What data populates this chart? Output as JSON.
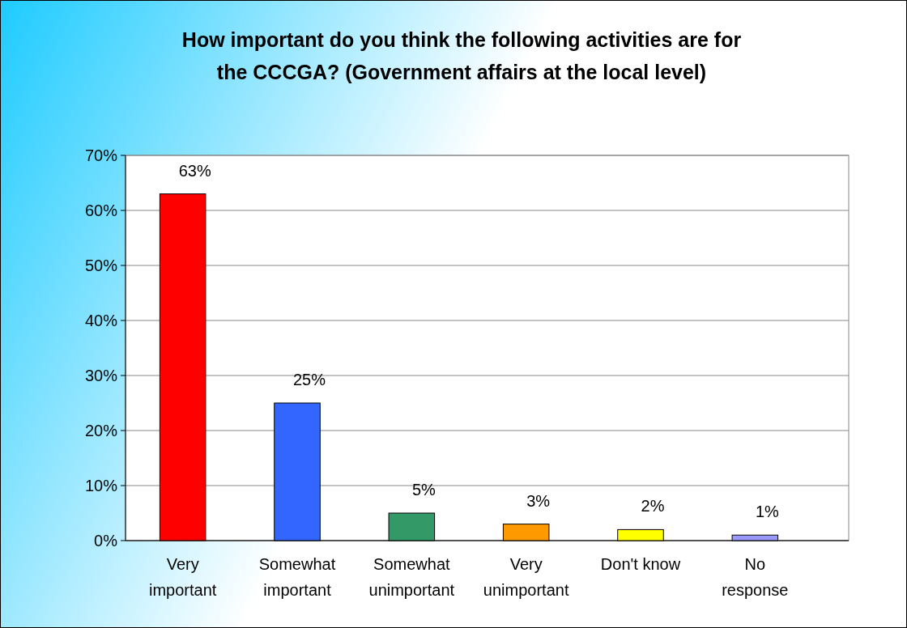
{
  "chart_data": {
    "type": "bar",
    "title": "How important do you think the following activities are for\nthe CCCGA? (Government affairs at the local level)",
    "categories": [
      "Very\nimportant",
      "Somewhat\nimportant",
      "Somewhat\nunimportant",
      "Very\nunimportant",
      "Don't know",
      "No\nresponse"
    ],
    "values": [
      63,
      25,
      5,
      3,
      2,
      1
    ],
    "colors": [
      "#ff0000",
      "#3366ff",
      "#339966",
      "#ff9900",
      "#ffff00",
      "#9999ff"
    ],
    "value_labels": [
      "63%",
      "25%",
      "5%",
      "3%",
      "2%",
      "1%"
    ],
    "ylim": [
      0,
      70
    ],
    "yticks": [
      {
        "value": 0,
        "label": "0%"
      },
      {
        "value": 10,
        "label": "10%"
      },
      {
        "value": 20,
        "label": "20%"
      },
      {
        "value": 30,
        "label": "30%"
      },
      {
        "value": 40,
        "label": "40%"
      },
      {
        "value": 50,
        "label": "50%"
      },
      {
        "value": 60,
        "label": "60%"
      },
      {
        "value": 70,
        "label": "70%"
      }
    ],
    "grid": "y"
  }
}
